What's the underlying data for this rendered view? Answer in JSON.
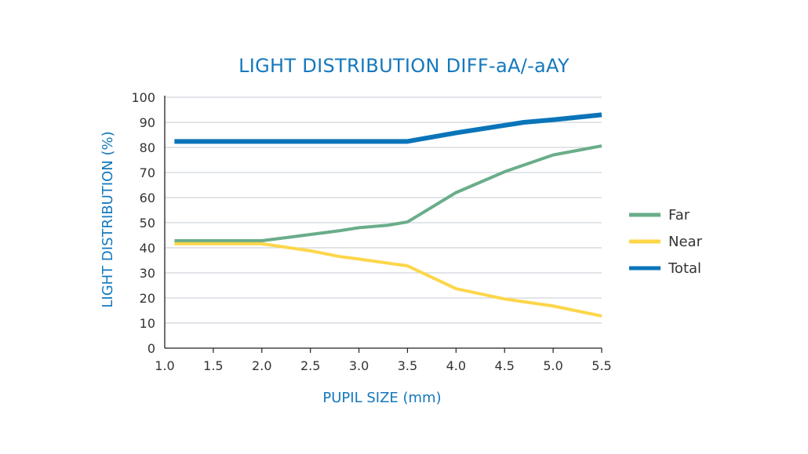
{
  "chart_data": {
    "type": "line",
    "title": "LIGHT DISTRIBUTION DIFF-aA/-aAY",
    "xlabel": "PUPIL SIZE (mm)",
    "ylabel": "LIGHT DISTRIBUTION   (%)",
    "xlim": [
      1.0,
      5.5
    ],
    "ylim": [
      0,
      100
    ],
    "xticks": [
      "1.0",
      "1.5",
      "2.0",
      "2.5",
      "3.0",
      "3.5",
      "4.0",
      "4.5",
      "5.0",
      "5.5"
    ],
    "yticks": [
      "0",
      "10",
      "20",
      "30",
      "40",
      "50",
      "60",
      "70",
      "80",
      "90",
      "100"
    ],
    "grid": true,
    "legend_position": "right",
    "series": [
      {
        "name": "Far",
        "color": "#6aad8a",
        "x": [
          1.1,
          2.0,
          2.3,
          2.8,
          3.0,
          3.3,
          3.5,
          4.0,
          4.5,
          5.0,
          5.5
        ],
        "y": [
          42.8,
          42.8,
          44.3,
          46.8,
          48.0,
          49.0,
          50.3,
          62.0,
          70.3,
          77.0,
          80.6
        ]
      },
      {
        "name": "Near",
        "color": "#fdd64a",
        "x": [
          1.1,
          2.0,
          2.5,
          2.8,
          3.0,
          3.5,
          4.0,
          4.5,
          5.0,
          5.5
        ],
        "y": [
          41.6,
          41.6,
          38.8,
          36.5,
          35.5,
          32.8,
          23.7,
          19.6,
          16.8,
          12.8
        ]
      },
      {
        "name": "Total",
        "color": "#0a74b9",
        "x": [
          1.1,
          3.5,
          4.0,
          4.7,
          5.0,
          5.5
        ],
        "y": [
          82.4,
          82.4,
          85.8,
          90.0,
          91.0,
          93.0
        ]
      }
    ]
  }
}
